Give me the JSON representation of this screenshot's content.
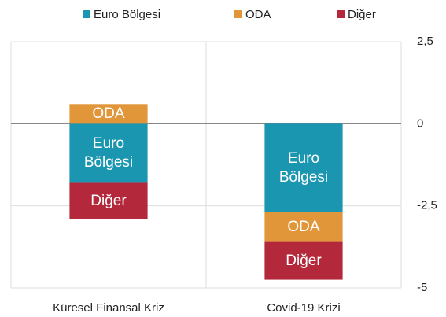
{
  "chart_data": {
    "type": "bar",
    "stacked": true,
    "categories": [
      "Küresel Finansal Kriz",
      "Covid-19 Krizi"
    ],
    "series": [
      {
        "name": "Euro Bölgesi",
        "color": "#1b96b1",
        "values": [
          -1.8,
          -2.7
        ]
      },
      {
        "name": "ODA",
        "color": "#e2963a",
        "values": [
          0.6,
          -0.9
        ]
      },
      {
        "name": "Diğer",
        "color": "#b3283a",
        "values": [
          -1.1,
          -1.15
        ]
      }
    ],
    "ylim": [
      -5,
      2.5
    ],
    "yticks": [
      {
        "value": 2.5,
        "label": "2,5"
      },
      0,
      {
        "value": -2.5,
        "label": "-2,5"
      },
      -5
    ],
    "grid": true,
    "legend": "top"
  }
}
